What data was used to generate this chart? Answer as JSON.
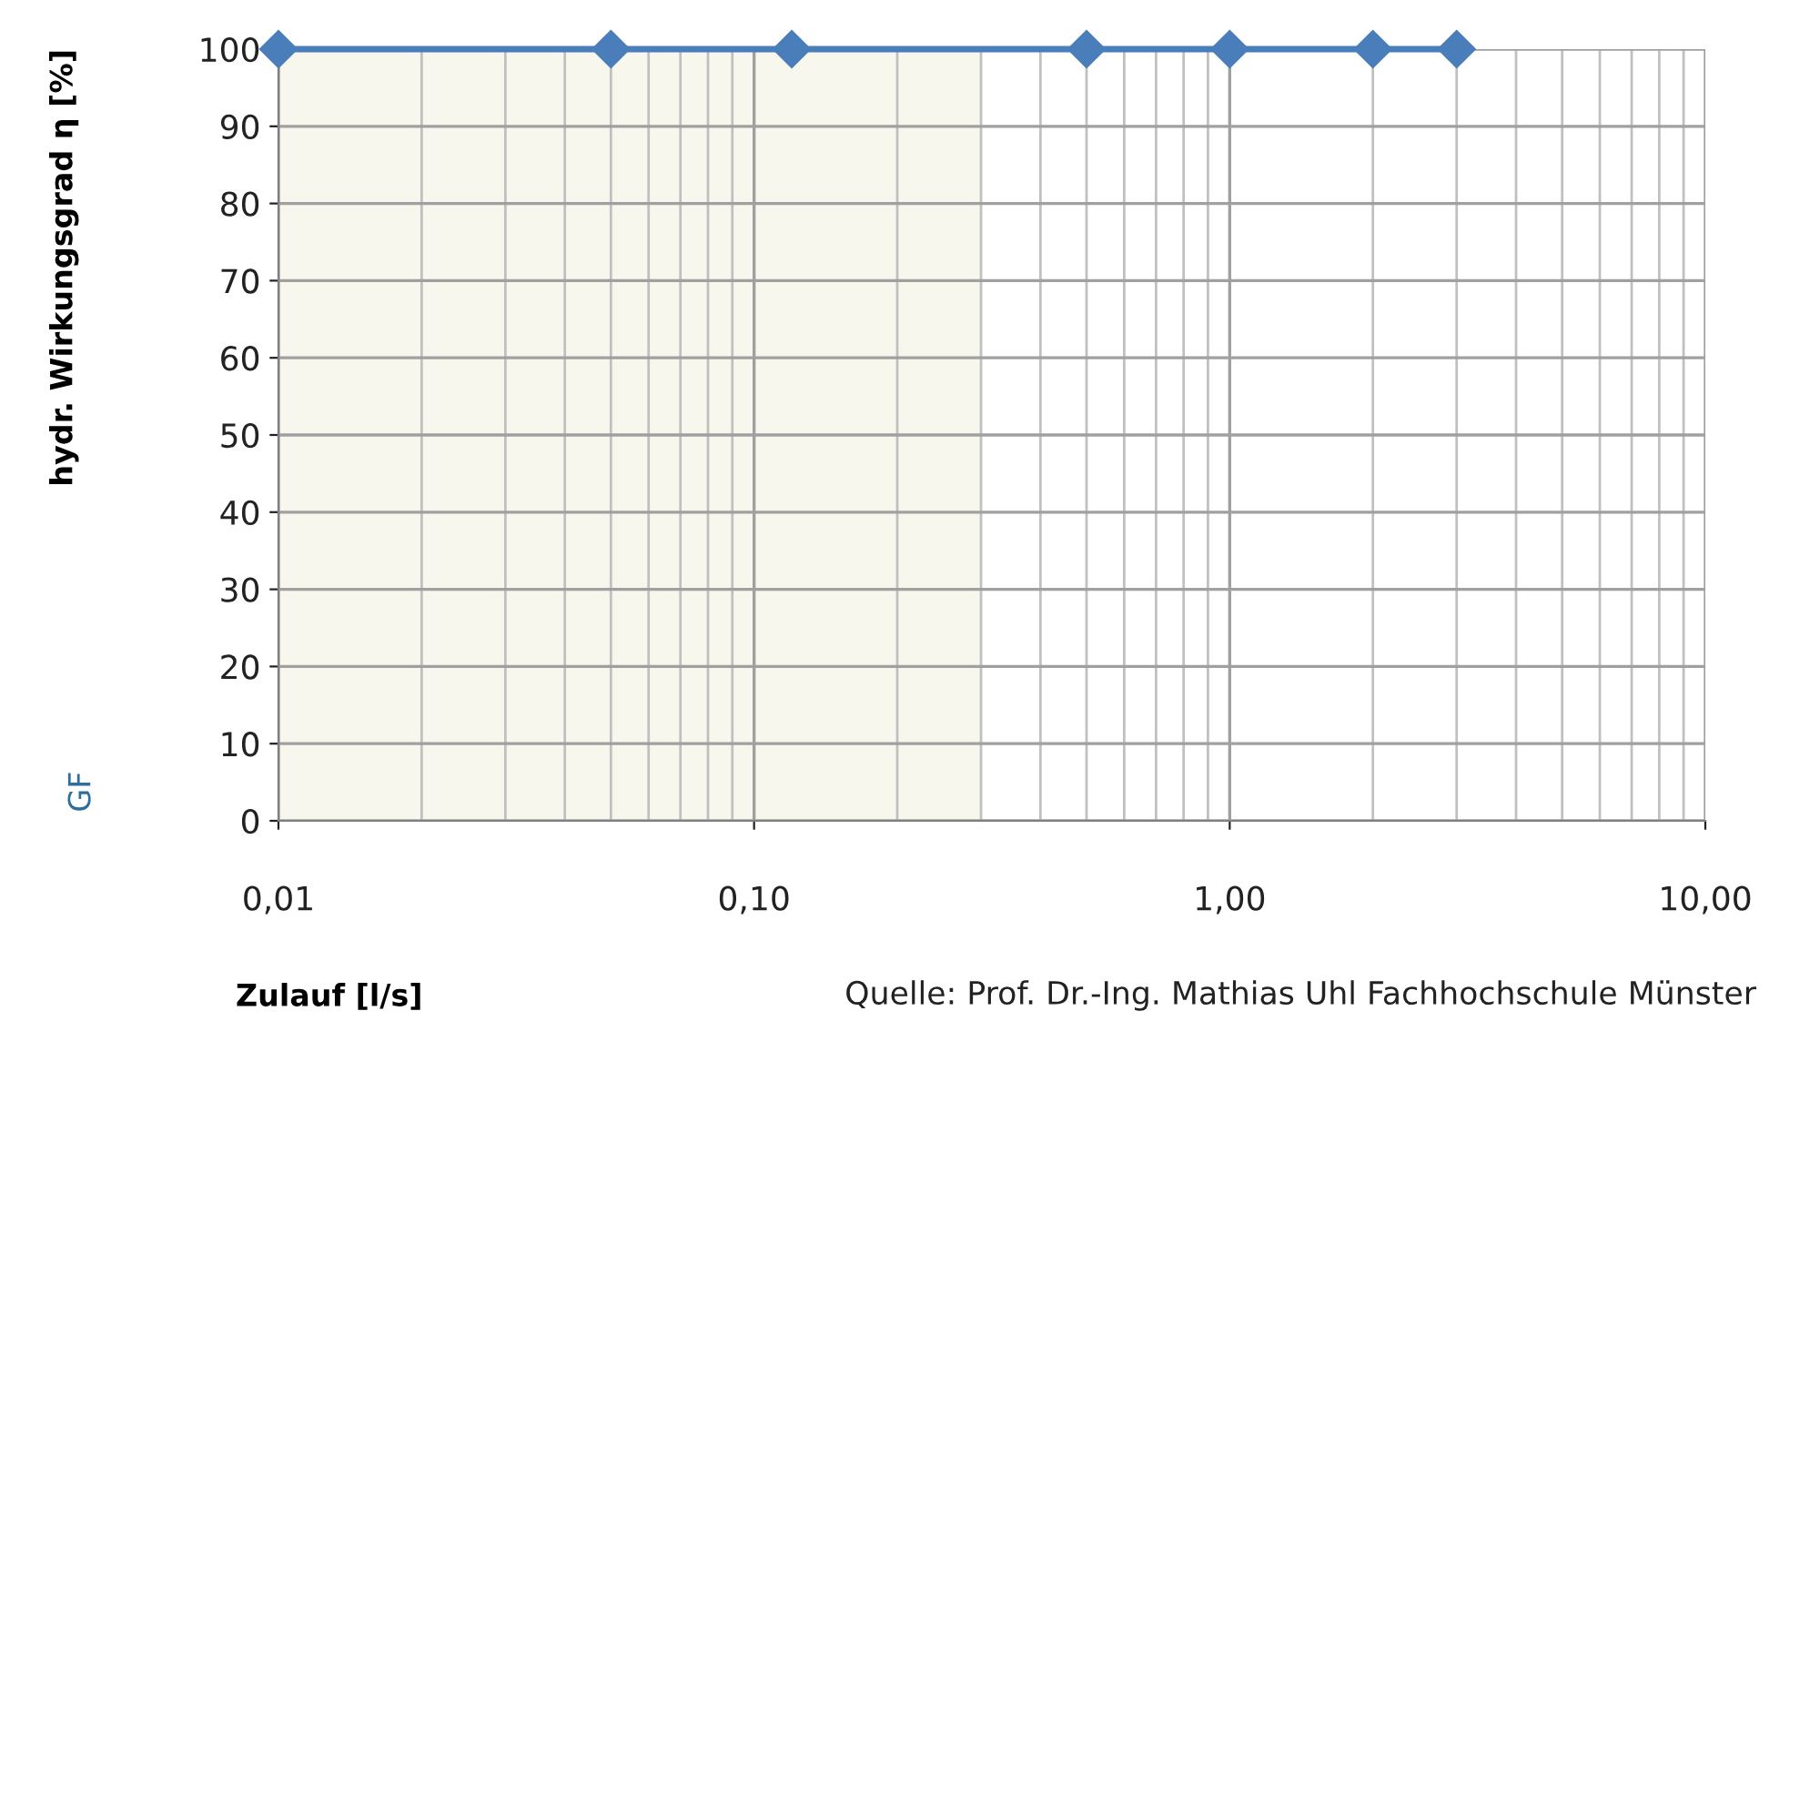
{
  "chart_data": {
    "type": "line",
    "xlabel": "Zulauf [l/s]",
    "ylabel": "hydr. Wirkungsgrad η [%]",
    "x": [
      0.01,
      0.05,
      0.12,
      0.5,
      1,
      2,
      3
    ],
    "series": [
      {
        "color": "#4a7ebb",
        "values": [
          100,
          100,
          100,
          100,
          100,
          100,
          100
        ]
      }
    ],
    "marker": "diamond",
    "line_style": "solid",
    "log": "x",
    "grid": true,
    "xlim": [
      0.01,
      10
    ],
    "xticks": [
      {
        "value": 0.01,
        "label": "0,01"
      },
      {
        "value": 0.1,
        "label": "0,10"
      },
      {
        "value": 1,
        "label": "1,00"
      },
      {
        "value": 10,
        "label": "10,00"
      }
    ],
    "ylim": [
      0,
      100
    ],
    "yticks": [
      0,
      10,
      20,
      30,
      40,
      50,
      60,
      70,
      80,
      90,
      100
    ],
    "bands": [
      {
        "axis": "x",
        "from": 0.01,
        "to": 0.3,
        "color": "#f7f7ee"
      }
    ],
    "annotations": [
      "GF",
      "Quelle: Prof. Dr.-Ing. Mathias Uhl Fachhochschule Münster"
    ]
  }
}
